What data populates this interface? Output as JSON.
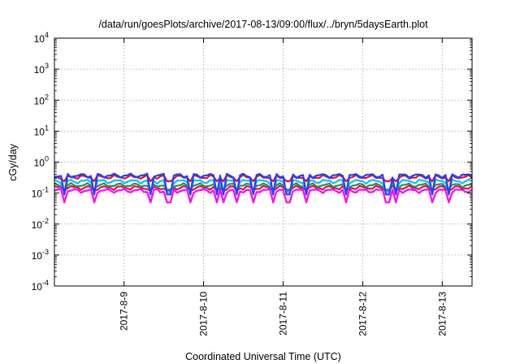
{
  "chart_data": {
    "type": "line",
    "title": "/data/run/goesPlots/archive/2017-08-13/09:00/flux/../bryn/5daysEarth.plot",
    "xlabel": "Coordinated Universal Time (UTC)",
    "ylabel": "cGy/day",
    "yscale": "log",
    "ylim": [
      0.0001,
      10000
    ],
    "xlim": [
      "2017-08-08T03:00",
      "2017-08-13T09:00"
    ],
    "grid": true,
    "legend": "none",
    "x_ticks": [
      {
        "label": "2017-8-9",
        "date": "2017-08-09T00:00"
      },
      {
        "label": "2017-8-10",
        "date": "2017-08-10T00:00"
      },
      {
        "label": "2017-8-11",
        "date": "2017-08-11T00:00"
      },
      {
        "label": "2017-8-12",
        "date": "2017-08-12T00:00"
      },
      {
        "label": "2017-8-13",
        "date": "2017-08-13T00:00"
      }
    ],
    "y_ticks": [
      {
        "base": "10",
        "exp": "-4",
        "value": 0.0001
      },
      {
        "base": "10",
        "exp": "-3",
        "value": 0.001
      },
      {
        "base": "10",
        "exp": "-2",
        "value": 0.01
      },
      {
        "base": "10",
        "exp": "-1",
        "value": 0.1
      },
      {
        "base": "10",
        "exp": "0",
        "value": 1
      },
      {
        "base": "10",
        "exp": "1",
        "value": 10
      },
      {
        "base": "10",
        "exp": "2",
        "value": 100
      },
      {
        "base": "10",
        "exp": "3",
        "value": 1000
      },
      {
        "base": "10",
        "exp": "4",
        "value": 10000
      }
    ],
    "series": [
      {
        "color": "#ff00ff",
        "level": 0.12,
        "dip": 0.05
      },
      {
        "color": "#dc143c",
        "level": 0.15,
        "dip": 0.12
      },
      {
        "color": "#2e8b57",
        "level": 0.18,
        "dip": 0.13
      },
      {
        "color": "#00bfff",
        "level": 0.24,
        "dip": 0.11
      },
      {
        "color": "#dc143c",
        "level": 0.33,
        "dip": 0.24
      },
      {
        "color": "#1f3fff",
        "level": 0.37,
        "dip": 0.09
      }
    ],
    "dip_dates": [
      "2017-08-08T06:00",
      "2017-08-08T15:00",
      "2017-08-09T08:00",
      "2017-08-09T13:00",
      "2017-08-09T14:00",
      "2017-08-09T20:00",
      "2017-08-10T04:00",
      "2017-08-10T06:00",
      "2017-08-10T10:00",
      "2017-08-10T15:00",
      "2017-08-10T21:00",
      "2017-08-11T01:00",
      "2017-08-11T02:00",
      "2017-08-11T07:00",
      "2017-08-11T19:00",
      "2017-08-12T07:00",
      "2017-08-12T08:00",
      "2017-08-12T10:00",
      "2017-08-12T21:00",
      "2017-08-13T02:00"
    ]
  }
}
